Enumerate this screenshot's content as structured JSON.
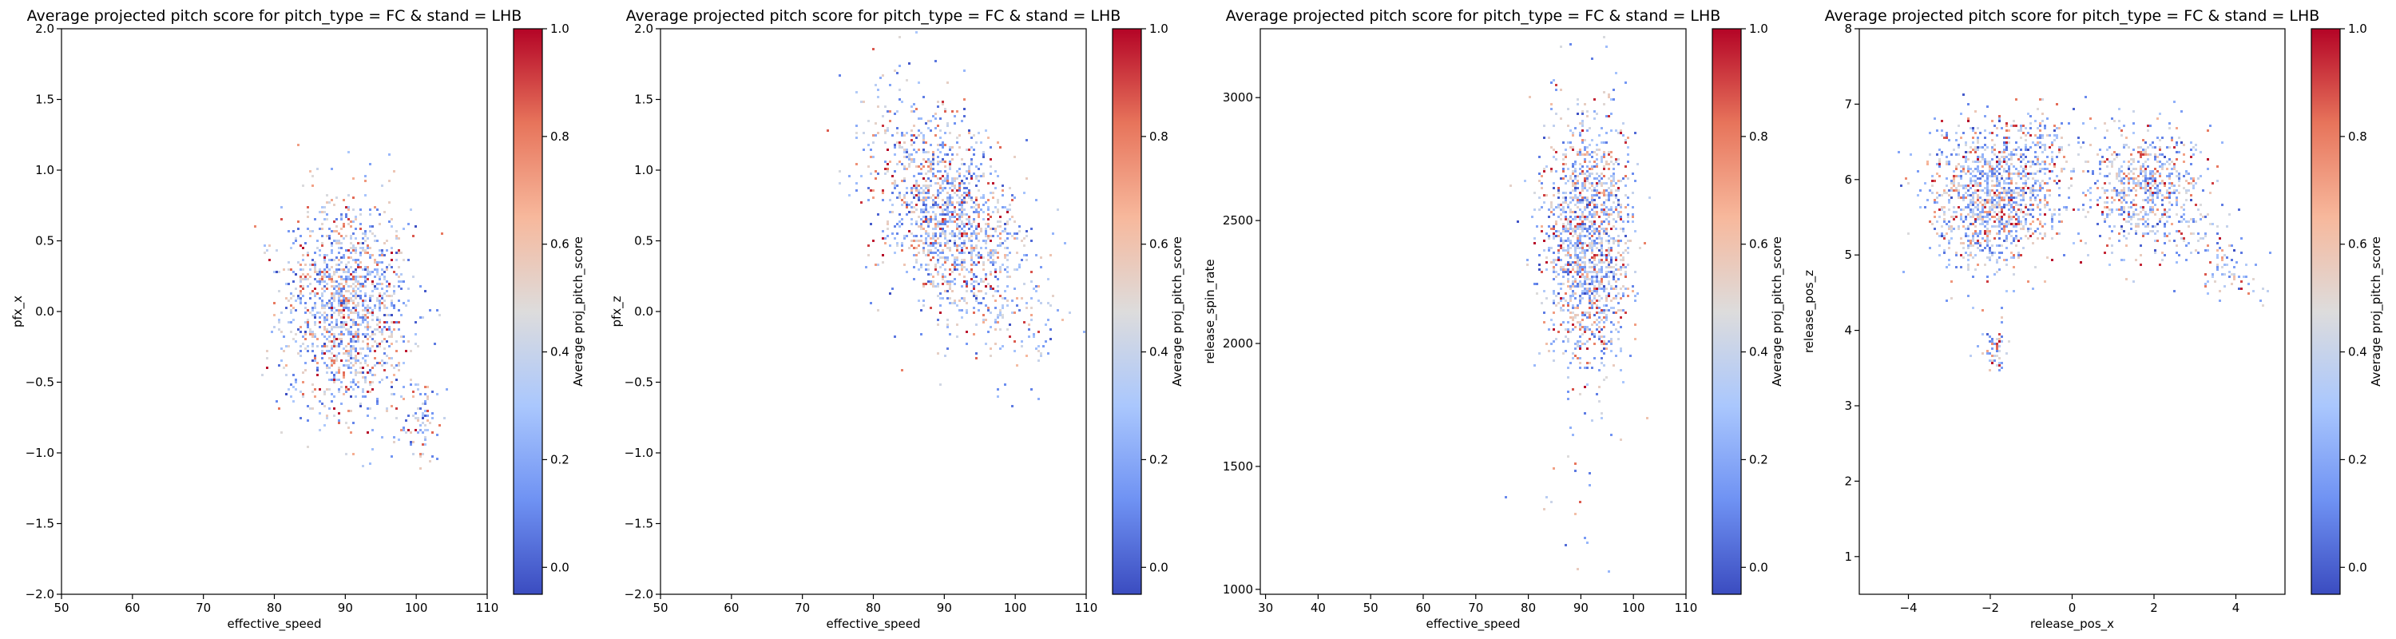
{
  "colormap": {
    "name": "coolwarm",
    "stops": [
      "#3b4cc0",
      "#6f92f3",
      "#aac7fd",
      "#dddcdc",
      "#f7b89c",
      "#e7745b",
      "#b40426"
    ]
  },
  "chart_data": [
    {
      "type": "heatmap",
      "title": "Average projected pitch score for pitch_type = FC & stand = LHB",
      "xlabel": "effective_speed",
      "ylabel": "pfx_x",
      "colorbar_label": "Average proj_pitch_score",
      "xlim": [
        50,
        110
      ],
      "ylim": [
        -2.0,
        2.0
      ],
      "xticks": [
        50,
        60,
        70,
        80,
        90,
        100,
        110
      ],
      "xtick_labels": [
        "50",
        "60",
        "70",
        "80",
        "90",
        "100",
        "110"
      ],
      "yticks": [
        -2.0,
        -1.5,
        -1.0,
        -0.5,
        0.0,
        0.5,
        1.0,
        1.5,
        2.0
      ],
      "ytick_labels": [
        "−2.0",
        "−1.5",
        "−1.0",
        "−0.5",
        "0.0",
        "0.5",
        "1.0",
        "1.5",
        "2.0"
      ],
      "cbar_ticks": [
        0.0,
        0.2,
        0.4,
        0.6,
        0.8,
        1.0
      ],
      "cbar_tick_labels": [
        "0.0",
        "0.2",
        "0.4",
        "0.6",
        "0.8",
        "1.0"
      ],
      "cbar_range": [
        -0.05,
        1.0
      ],
      "clusters": [
        {
          "cx": 90,
          "cy": 0.05,
          "sx": 4.5,
          "sy": 0.38,
          "rot": 0,
          "n": 1400
        },
        {
          "cx": 100.5,
          "cy": -0.75,
          "sx": 1.5,
          "sy": 0.15,
          "rot": 0,
          "n": 90
        }
      ]
    },
    {
      "type": "heatmap",
      "title": "Average projected pitch score for pitch_type = FC & stand = LHB",
      "xlabel": "effective_speed",
      "ylabel": "pfx_z",
      "colorbar_label": "Average proj_pitch_score",
      "xlim": [
        50,
        110
      ],
      "ylim": [
        -2.0,
        2.0
      ],
      "xticks": [
        50,
        60,
        70,
        80,
        90,
        100,
        110
      ],
      "xtick_labels": [
        "50",
        "60",
        "70",
        "80",
        "90",
        "100",
        "110"
      ],
      "yticks": [
        -2.0,
        -1.5,
        -1.0,
        -0.5,
        0.0,
        0.5,
        1.0,
        1.5,
        2.0
      ],
      "ytick_labels": [
        "−2.0",
        "−1.5",
        "−1.0",
        "−0.5",
        "0.0",
        "0.5",
        "1.0",
        "1.5",
        "2.0"
      ],
      "cbar_ticks": [
        0.0,
        0.2,
        0.4,
        0.6,
        0.8,
        1.0
      ],
      "cbar_tick_labels": [
        "0.0",
        "0.2",
        "0.4",
        "0.6",
        "0.8",
        "1.0"
      ],
      "cbar_range": [
        -0.05,
        1.0
      ],
      "clusters": [
        {
          "cx": 91,
          "cy": 0.65,
          "sx": 4.3,
          "sy": 0.45,
          "rot": 0.55,
          "n": 1500
        }
      ]
    },
    {
      "type": "heatmap",
      "title": "Average projected pitch score for pitch_type = FC & stand = LHB",
      "xlabel": "effective_speed",
      "ylabel": "release_spin_rate",
      "colorbar_label": "Average proj_pitch_score",
      "xlim": [
        29,
        110
      ],
      "ylim": [
        980,
        3280
      ],
      "xticks": [
        30,
        40,
        50,
        60,
        70,
        80,
        90,
        100,
        110
      ],
      "xtick_labels": [
        "30",
        "40",
        "50",
        "60",
        "70",
        "80",
        "90",
        "100",
        "110"
      ],
      "yticks": [
        1000,
        1500,
        2000,
        2500,
        3000
      ],
      "ytick_labels": [
        "1000",
        "1500",
        "2000",
        "2500",
        "3000"
      ],
      "cbar_ticks": [
        0.0,
        0.2,
        0.4,
        0.6,
        0.8,
        1.0
      ],
      "cbar_tick_labels": [
        "0.0",
        "0.2",
        "0.4",
        "0.6",
        "0.8",
        "1.0"
      ],
      "cbar_range": [
        -0.05,
        1.0
      ],
      "clusters": [
        {
          "cx": 91,
          "cy": 2420,
          "sx": 4.2,
          "sy": 250,
          "rot": 0,
          "n": 1500
        },
        {
          "cx": 88,
          "cy": 1350,
          "sx": 4,
          "sy": 150,
          "rot": 0,
          "n": 20
        }
      ]
    },
    {
      "type": "heatmap",
      "title": "Average projected pitch score for pitch_type = FC & stand = LHB",
      "xlabel": "release_pos_x",
      "ylabel": "release_pos_z",
      "colorbar_label": "Average proj_pitch_score",
      "xlim": [
        -5.2,
        5.2
      ],
      "ylim": [
        0.5,
        8.0
      ],
      "xticks": [
        -4,
        -2,
        0,
        2,
        4
      ],
      "xtick_labels": [
        "−4",
        "−2",
        "0",
        "2",
        "4"
      ],
      "yticks": [
        1,
        2,
        3,
        4,
        5,
        6,
        7,
        8
      ],
      "ytick_labels": [
        "1",
        "2",
        "3",
        "4",
        "5",
        "6",
        "7",
        "8"
      ],
      "cbar_ticks": [
        0.0,
        0.2,
        0.4,
        0.6,
        0.8,
        1.0
      ],
      "cbar_tick_labels": [
        "0.0",
        "0.2",
        "0.4",
        "0.6",
        "0.8",
        "1.0"
      ],
      "cbar_range": [
        -0.05,
        1.0
      ],
      "clusters": [
        {
          "cx": -2.0,
          "cy": 5.8,
          "sx": 0.75,
          "sy": 0.45,
          "rot": 0.2,
          "n": 1200
        },
        {
          "cx": -0.7,
          "cy": 6.5,
          "sx": 0.3,
          "sy": 0.3,
          "rot": 0,
          "n": 120
        },
        {
          "cx": 1.8,
          "cy": 5.9,
          "sx": 0.8,
          "sy": 0.4,
          "rot": -0.25,
          "n": 700
        },
        {
          "cx": 3.8,
          "cy": 4.8,
          "sx": 0.4,
          "sy": 0.2,
          "rot": -0.3,
          "n": 70
        },
        {
          "cx": -1.9,
          "cy": 3.8,
          "sx": 0.15,
          "sy": 0.18,
          "rot": 0,
          "n": 50
        }
      ]
    }
  ]
}
